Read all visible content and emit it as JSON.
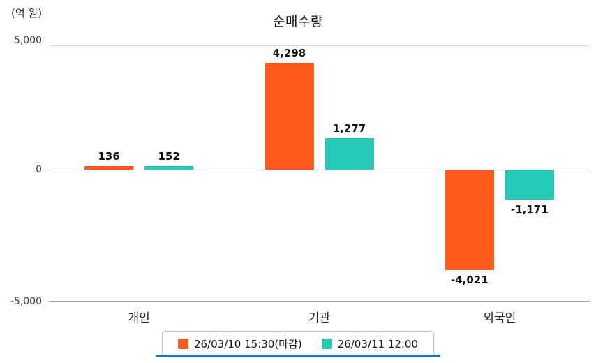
{
  "chart_data": {
    "type": "bar",
    "title": "순매수량",
    "unit_label": "(억 원)",
    "categories": [
      "개인",
      "기관",
      "외국인"
    ],
    "series": [
      {
        "name": "26/03/10 15:30(마감)",
        "color": "#ff5a1c",
        "values": [
          136,
          4298,
          -4021
        ]
      },
      {
        "name": "26/03/11 12:00",
        "color": "#26c9b8",
        "values": [
          152,
          1277,
          -1171
        ]
      }
    ],
    "value_labels": [
      [
        "136",
        "4,298",
        "-4,021"
      ],
      [
        "152",
        "1,277",
        "-1,171"
      ]
    ],
    "ylim": [
      -5000,
      5000
    ],
    "yticks": [
      "5,000",
      "0",
      "-5,000"
    ],
    "grid": "horizontal-at-ticks",
    "legend_position": "bottom"
  },
  "colors": {
    "accent_underline": "#1b6ed6"
  }
}
